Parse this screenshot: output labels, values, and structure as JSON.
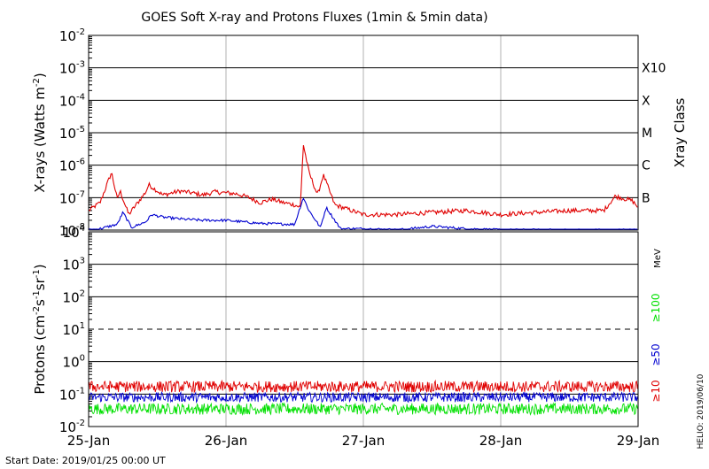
{
  "title": "GOES Soft X-ray and Protons Fluxes   (1min & 5min data)",
  "footer": {
    "start_date": "Start Date: 2019/01/25 00:00 UT",
    "credit": "HELIO: 2019/06/10"
  },
  "x_axis": {
    "tick_labels": [
      "25-Jan",
      "26-Jan",
      "27-Jan",
      "28-Jan",
      "29-Jan"
    ],
    "range": [
      "2019-01-25T00:00",
      "2019-01-29T00:00"
    ]
  },
  "chart_data": [
    {
      "type": "line",
      "panel": "xray",
      "ylabel_main": "X-rays (Watts m",
      "ylabel_sup": "-2",
      "ylabel_close": ")",
      "yscale": "log",
      "ylim": [
        1e-08,
        0.01
      ],
      "ytick_exponents": [
        "-2",
        "-3",
        "-4",
        "-5",
        "-6",
        "-7",
        "-8"
      ],
      "right_label": "Xray Class",
      "class_labels": [
        {
          "label": "X10",
          "flux": 0.001
        },
        {
          "label": "X",
          "flux": 0.0001
        },
        {
          "label": "M",
          "flux": 1e-05
        },
        {
          "label": "C",
          "flux": 1e-06
        },
        {
          "label": "B",
          "flux": 1e-07
        }
      ],
      "grid": true,
      "series": [
        {
          "color": "#e00000",
          "x": [
            "2019-01-25T00:00",
            "2019-01-25T02:00",
            "2019-01-25T04:00",
            "2019-01-25T05:00",
            "2019-01-25T05:30",
            "2019-01-25T07:00",
            "2019-01-25T10:00",
            "2019-01-25T10:30",
            "2019-01-25T13:00",
            "2019-01-25T16:00",
            "2019-01-25T18:00",
            "2019-01-25T20:00",
            "2019-01-25T22:00",
            "2019-01-26T00:00",
            "2019-01-26T02:00",
            "2019-01-26T04:00",
            "2019-01-26T06:00",
            "2019-01-26T08:00",
            "2019-01-26T10:00",
            "2019-01-26T12:00",
            "2019-01-26T13:00",
            "2019-01-26T13:30",
            "2019-01-26T14:30",
            "2019-01-26T16:00",
            "2019-01-26T17:00",
            "2019-01-26T17:30",
            "2019-01-26T19:00",
            "2019-01-27T00:00",
            "2019-01-27T06:00",
            "2019-01-27T12:00",
            "2019-01-27T18:00",
            "2019-01-28T00:00",
            "2019-01-28T06:00",
            "2019-01-28T12:00",
            "2019-01-28T18:00",
            "2019-01-28T20:00",
            "2019-01-28T23:00",
            "2019-01-29T00:00"
          ],
          "y": [
            4e-08,
            7e-08,
            6e-07,
            9e-08,
            1.6e-07,
            3e-08,
            1.5e-07,
            2.5e-07,
            1.2e-07,
            1.6e-07,
            1.4e-07,
            1.2e-07,
            1.5e-07,
            1.4e-07,
            1.3e-07,
            1e-07,
            7e-08,
            9e-08,
            7e-08,
            6e-08,
            5e-08,
            4.5e-06,
            6e-07,
            1.2e-07,
            5e-07,
            3e-07,
            6e-08,
            3e-08,
            3e-08,
            3.5e-08,
            4e-08,
            3e-08,
            3.5e-08,
            4e-08,
            4e-08,
            1.1e-07,
            8e-08,
            5e-08
          ]
        },
        {
          "color": "#0000d0",
          "x": [
            "2019-01-25T00:00",
            "2019-01-25T02:00",
            "2019-01-25T05:00",
            "2019-01-25T06:00",
            "2019-01-25T07:30",
            "2019-01-25T10:00",
            "2019-01-25T11:00",
            "2019-01-25T13:00",
            "2019-01-25T16:00",
            "2019-01-25T20:00",
            "2019-01-26T00:00",
            "2019-01-26T06:00",
            "2019-01-26T12:00",
            "2019-01-26T13:30",
            "2019-01-26T14:30",
            "2019-01-26T16:30",
            "2019-01-26T17:30",
            "2019-01-26T20:00",
            "2019-01-27T00:00",
            "2019-01-27T06:00",
            "2019-01-27T12:00",
            "2019-01-27T18:00",
            "2019-01-28T00:00",
            "2019-01-28T12:00",
            "2019-01-28T18:00",
            "2019-01-29T00:00"
          ],
          "y": [
            1e-08,
            1.1e-08,
            1.5e-08,
            3.5e-08,
            1.2e-08,
            1.8e-08,
            3e-08,
            2.5e-08,
            2.2e-08,
            2e-08,
            2e-08,
            1.6e-08,
            1.5e-08,
            1e-07,
            4e-08,
            1.2e-08,
            5e-08,
            1.1e-08,
            1.1e-08,
            1e-08,
            1.3e-08,
            1.1e-08,
            1e-08,
            1e-08,
            1e-08,
            1e-08
          ]
        }
      ]
    },
    {
      "type": "line",
      "panel": "protons",
      "ylabel_main": "Protons (cm",
      "ylabel_p1": "-2",
      "ylabel_mid1": "s",
      "ylabel_p2": "-1",
      "ylabel_mid2": "sr",
      "ylabel_p3": "-1",
      "ylabel_close": ")",
      "yscale": "log",
      "ylim": [
        0.01,
        10000.0
      ],
      "ytick_labels": [
        {
          "base": "10",
          "exp": "4"
        },
        {
          "base": "10",
          "exp": "3"
        },
        {
          "base": "10",
          "exp": "2"
        },
        {
          "base": "10",
          "exp": "1"
        },
        {
          "base": "10",
          "exp": "0"
        },
        {
          "base": "10",
          "exp": "-1"
        },
        {
          "base": "10",
          "exp": "-2"
        }
      ],
      "threshold": 10,
      "unit_label": "MeV",
      "grid": true,
      "series": [
        {
          "name": "≥10",
          "color": "#e00000",
          "level": 0.17,
          "spread": 0.35
        },
        {
          "name": "≥50",
          "color": "#0000d0",
          "level": 0.08,
          "spread": 0.3
        },
        {
          "name": "≥100",
          "color": "#00e000",
          "level": 0.035,
          "spread": 0.35
        }
      ]
    }
  ]
}
